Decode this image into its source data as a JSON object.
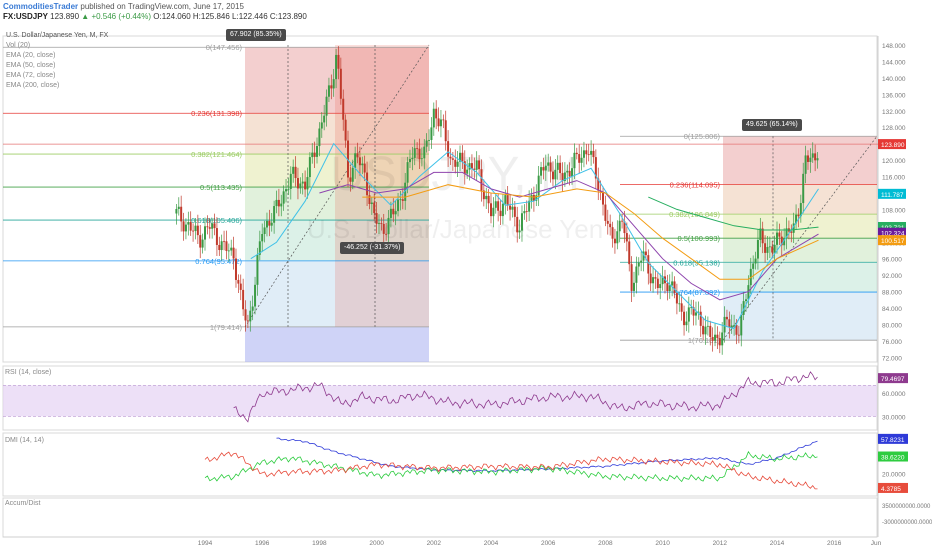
{
  "header": {
    "author": "CommoditiesTrader",
    "published": "published on TradingView.com, June 17, 2015",
    "symbol": "FX:USDJPY",
    "last": "123.890",
    "change": "▲ +0.546 (+0.44%)",
    "open": "O:124.060",
    "high": "H:125.846",
    "low": "L:122.446",
    "close": "C:123.890"
  },
  "legend": {
    "title": "U.S. Dollar/Japanese Yen, M, FX",
    "items": [
      "Vol (20)",
      "EMA (20, close)",
      "EMA (50, close)",
      "EMA (72, close)",
      "EMA (200, close)"
    ]
  },
  "watermark": {
    "symbol": "USDJPY, M",
    "name": "U.S. Dollar/Japanese Yen"
  },
  "colors": {
    "up": "#3a9a45",
    "down": "#c0392b",
    "ema20": "#3fc1e8",
    "ema50": "#8e44ad",
    "ema72": "#f39c12",
    "ema200": "#27ae60",
    "rsi": "#8e3a8e",
    "dmi_plus": "#2ecc40",
    "dmi_minus": "#e74c3c",
    "adx": "#2e3ad8",
    "price_line": "#e57373"
  },
  "measures": [
    {
      "label": "67.902 (85.35%)"
    },
    {
      "label": "-46.252 (-31.37%)"
    },
    {
      "label": "49.625 (65.14%)"
    }
  ],
  "fib1": {
    "levels": [
      {
        "ratio": "0",
        "price": 147.456,
        "label": "0(147.456)"
      },
      {
        "ratio": "0.236",
        "price": 131.398,
        "label": "0.236(131.398)"
      },
      {
        "ratio": "0.382",
        "price": 121.464,
        "label": "0.382(121.464)"
      },
      {
        "ratio": "0.5",
        "price": 113.435,
        "label": "0.5(113.435)"
      },
      {
        "ratio": "0.618",
        "price": 105.406,
        "label": "0.618(105.406)"
      },
      {
        "ratio": "0.764",
        "price": 95.472,
        "label": "0.764(95.472)"
      },
      {
        "ratio": "1",
        "price": 79.414,
        "label": "1(79.414)"
      }
    ]
  },
  "fib2": {
    "levels": [
      {
        "ratio": "0",
        "price": 125.806,
        "label": "0(125.806)"
      },
      {
        "ratio": "0.236",
        "price": 114.095,
        "label": "0.236(114.095)"
      },
      {
        "ratio": "0.382",
        "price": 106.849,
        "label": "0.382(106.849)"
      },
      {
        "ratio": "0.5",
        "price": 100.993,
        "label": "0.5(100.993)"
      },
      {
        "ratio": "0.618",
        "price": 95.138,
        "label": "0.618(95.138)"
      },
      {
        "ratio": "0.764",
        "price": 87.892,
        "label": "0.764(87.892)"
      },
      {
        "ratio": "1",
        "price": 76.181,
        "label": "1(76.181)"
      }
    ]
  },
  "price_badges": [
    {
      "label": "123.890",
      "value": 123.89,
      "color": "#e53935"
    },
    {
      "label": "111.787",
      "value": 111.787,
      "color": "#00bcd4"
    },
    {
      "label": "103.721",
      "value": 103.721,
      "color": "#27ae60"
    },
    {
      "label": "102.324",
      "value": 102.324,
      "color": "#6a1b9a"
    },
    {
      "label": "100.517",
      "value": 100.517,
      "color": "#f39c12"
    }
  ],
  "chart_data": {
    "type": "candlestick",
    "title": "U.S. Dollar/Japanese Yen, M, FX",
    "x_axis_labels": [
      "1994",
      "1996",
      "1998",
      "2000",
      "2002",
      "2004",
      "2006",
      "2008",
      "2010",
      "2012",
      "2014",
      "2016",
      "Jun"
    ],
    "y_axis": {
      "ticks": [
        148.0,
        144.0,
        140.0,
        136.0,
        132.0,
        128.0,
        124.0,
        120.0,
        116.0,
        112.0,
        108.0,
        104.0,
        100.0,
        96.0,
        92.0,
        88.0,
        84.0,
        80.0,
        76.0,
        72.0
      ],
      "ylim": [
        72,
        150
      ]
    },
    "price_path": [
      [
        1993.0,
        107
      ],
      [
        1993.4,
        104
      ],
      [
        1993.8,
        101
      ],
      [
        1994.2,
        104
      ],
      [
        1994.6,
        99
      ],
      [
        1995.0,
        97
      ],
      [
        1995.3,
        84
      ],
      [
        1995.5,
        80
      ],
      [
        1995.7,
        88
      ],
      [
        1996.0,
        103
      ],
      [
        1996.5,
        108
      ],
      [
        1997.0,
        116
      ],
      [
        1997.5,
        114
      ],
      [
        1998.0,
        127
      ],
      [
        1998.4,
        138
      ],
      [
        1998.6,
        146
      ],
      [
        1998.8,
        132
      ],
      [
        1999.0,
        116
      ],
      [
        1999.3,
        121
      ],
      [
        1999.6,
        116
      ],
      [
        1999.9,
        106
      ],
      [
        2000.2,
        103
      ],
      [
        2000.6,
        107
      ],
      [
        2000.9,
        112
      ],
      [
        2001.3,
        123
      ],
      [
        2001.7,
        121
      ],
      [
        2002.0,
        132
      ],
      [
        2002.3,
        128
      ],
      [
        2002.6,
        120
      ],
      [
        2003.0,
        119
      ],
      [
        2003.5,
        118
      ],
      [
        2004.0,
        107
      ],
      [
        2004.5,
        110
      ],
      [
        2005.0,
        104
      ],
      [
        2005.5,
        112
      ],
      [
        2005.9,
        119
      ],
      [
        2006.5,
        116
      ],
      [
        2007.0,
        120
      ],
      [
        2007.4,
        123
      ],
      [
        2007.8,
        113
      ],
      [
        2008.2,
        100
      ],
      [
        2008.6,
        106
      ],
      [
        2008.9,
        90
      ],
      [
        2009.3,
        97
      ],
      [
        2009.8,
        89
      ],
      [
        2010.2,
        91
      ],
      [
        2010.7,
        82
      ],
      [
        2011.2,
        83
      ],
      [
        2011.6,
        77
      ],
      [
        2012.0,
        77
      ],
      [
        2012.3,
        81
      ],
      [
        2012.7,
        78
      ],
      [
        2013.0,
        91
      ],
      [
        2013.4,
        101
      ],
      [
        2013.8,
        98
      ],
      [
        2014.2,
        102
      ],
      [
        2014.6,
        103
      ],
      [
        2014.8,
        110
      ],
      [
        2015.0,
        120
      ],
      [
        2015.3,
        120
      ],
      [
        2015.45,
        124
      ]
    ],
    "ema20_path": [
      [
        1995.6,
        96
      ],
      [
        1996.5,
        100
      ],
      [
        1997.5,
        110
      ],
      [
        1998.5,
        124
      ],
      [
        1999.5,
        116
      ],
      [
        2000.5,
        109
      ],
      [
        2001.5,
        116
      ],
      [
        2002.5,
        122
      ],
      [
        2003.5,
        117
      ],
      [
        2004.5,
        109
      ],
      [
        2005.5,
        110
      ],
      [
        2006.5,
        115
      ],
      [
        2007.5,
        118
      ],
      [
        2008.5,
        107
      ],
      [
        2009.5,
        95
      ],
      [
        2010.5,
        88
      ],
      [
        2011.5,
        81
      ],
      [
        2012.5,
        79
      ],
      [
        2013.5,
        93
      ],
      [
        2014.5,
        103
      ],
      [
        2015.45,
        113
      ]
    ],
    "ema50_path": [
      [
        1998.0,
        112
      ],
      [
        1999.0,
        114
      ],
      [
        2000.0,
        112
      ],
      [
        2001.0,
        113
      ],
      [
        2002.0,
        117
      ],
      [
        2003.0,
        117
      ],
      [
        2004.0,
        113
      ],
      [
        2005.0,
        111
      ],
      [
        2006.0,
        113
      ],
      [
        2007.0,
        115
      ],
      [
        2008.0,
        112
      ],
      [
        2009.0,
        104
      ],
      [
        2010.0,
        96
      ],
      [
        2011.0,
        90
      ],
      [
        2012.0,
        86
      ],
      [
        2013.0,
        88
      ],
      [
        2014.0,
        96
      ],
      [
        2015.45,
        102
      ]
    ],
    "ema72_path": [
      [
        1999.5,
        111
      ],
      [
        2001.0,
        111
      ],
      [
        2002.5,
        114
      ],
      [
        2004.0,
        112
      ],
      [
        2005.5,
        111
      ],
      [
        2007.0,
        113
      ],
      [
        2008.0,
        112
      ],
      [
        2009.0,
        107
      ],
      [
        2010.0,
        101
      ],
      [
        2011.0,
        96
      ],
      [
        2012.0,
        91
      ],
      [
        2013.0,
        91
      ],
      [
        2014.0,
        96
      ],
      [
        2015.45,
        100.5
      ]
    ],
    "ema200_path": [
      [
        2009.5,
        111
      ],
      [
        2010.5,
        108
      ],
      [
        2011.5,
        106
      ],
      [
        2012.5,
        104
      ],
      [
        2013.5,
        103
      ],
      [
        2014.5,
        103
      ],
      [
        2015.45,
        103.7
      ]
    ],
    "rsi": {
      "label": "RSI (14, close)",
      "last": "79.4697",
      "ticks": [
        "80.0000",
        "60.0000",
        "30.0000"
      ],
      "band": [
        30,
        70
      ],
      "path": [
        [
          1995.0,
          38
        ],
        [
          1995.5,
          28
        ],
        [
          1996.0,
          60
        ],
        [
          1997.0,
          64
        ],
        [
          1998.0,
          70
        ],
        [
          1998.8,
          45
        ],
        [
          1999.5,
          55
        ],
        [
          2000.5,
          50
        ],
        [
          2001.5,
          58
        ],
        [
          2002.5,
          48
        ],
        [
          2004.0,
          45
        ],
        [
          2005.0,
          50
        ],
        [
          2006.0,
          55
        ],
        [
          2007.5,
          56
        ],
        [
          2008.5,
          40
        ],
        [
          2009.5,
          47
        ],
        [
          2011.0,
          42
        ],
        [
          2012.0,
          45
        ],
        [
          2013.0,
          74
        ],
        [
          2014.0,
          73
        ],
        [
          2015.0,
          82
        ],
        [
          2015.45,
          79.5
        ]
      ]
    },
    "dmi": {
      "label": "DMI (14, 14)",
      "ticks": [
        "40.0000",
        "20.0000"
      ],
      "last_adx": "57.8231",
      "last_plus": "38.6220",
      "last_minus": "4.3785",
      "adx": [
        [
          1996.5,
          58
        ],
        [
          1997.5,
          55
        ],
        [
          1998.5,
          44
        ],
        [
          1999.5,
          36
        ],
        [
          2000.5,
          28
        ],
        [
          2002.0,
          24
        ],
        [
          2004.0,
          23
        ],
        [
          2006.0,
          25
        ],
        [
          2008.0,
          28
        ],
        [
          2010.0,
          34
        ],
        [
          2012.0,
          37
        ],
        [
          2013.0,
          30
        ],
        [
          2014.0,
          37
        ],
        [
          2015.45,
          56
        ]
      ],
      "plus": [
        [
          1994.0,
          14
        ],
        [
          1995.0,
          17
        ],
        [
          1996.0,
          32
        ],
        [
          1997.0,
          37
        ],
        [
          1998.5,
          28
        ],
        [
          2000.0,
          18
        ],
        [
          2002.0,
          24
        ],
        [
          2004.0,
          22
        ],
        [
          2006.0,
          26
        ],
        [
          2008.0,
          17
        ],
        [
          2010.0,
          15
        ],
        [
          2012.0,
          15
        ],
        [
          2013.0,
          40
        ],
        [
          2014.0,
          36
        ],
        [
          2015.45,
          40
        ]
      ],
      "minus": [
        [
          1994.0,
          34
        ],
        [
          1995.0,
          43
        ],
        [
          1996.0,
          19
        ],
        [
          1997.0,
          22
        ],
        [
          1998.5,
          23
        ],
        [
          2000.0,
          30
        ],
        [
          2002.0,
          26
        ],
        [
          2004.0,
          28
        ],
        [
          2006.0,
          27
        ],
        [
          2008.0,
          36
        ],
        [
          2010.0,
          33
        ],
        [
          2012.0,
          30
        ],
        [
          2013.0,
          17
        ],
        [
          2014.0,
          12
        ],
        [
          2015.45,
          5
        ]
      ]
    },
    "accum": {
      "label": "Accum/Dist",
      "ticks": [
        "3500000000.0000",
        "-3000000000.0000"
      ]
    }
  }
}
